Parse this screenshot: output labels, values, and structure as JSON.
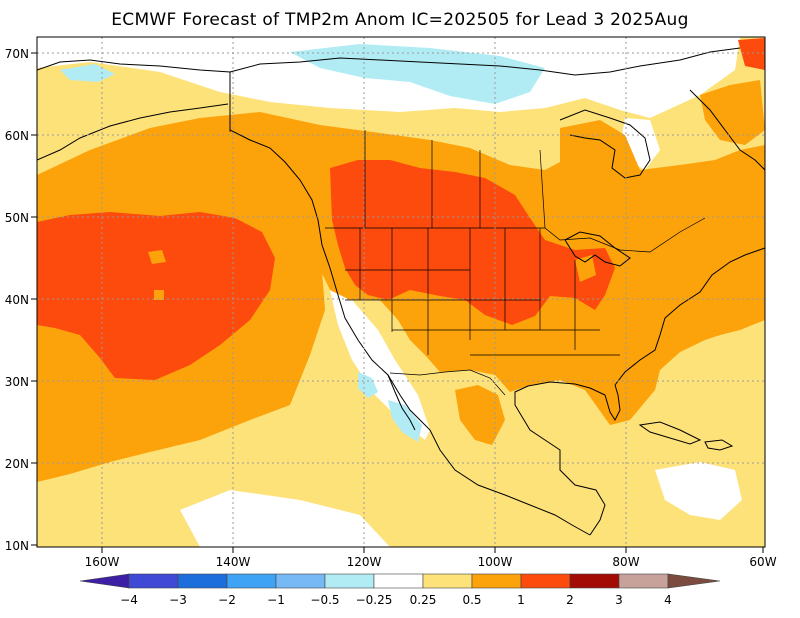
{
  "title": "ECMWF Forecast of TMP2m Anom IC=202505 for Lead 3 2025Aug",
  "latitude_labels": [
    "70N",
    "60N",
    "50N",
    "40N",
    "30N",
    "20N",
    "10N"
  ],
  "longitude_labels": [
    "160W",
    "140W",
    "120W",
    "100W",
    "80W",
    "60W"
  ],
  "colorbar": {
    "bins": [
      {
        "color": "#3c1fa5"
      },
      {
        "color": "#3f49d6"
      },
      {
        "color": "#1c6edc"
      },
      {
        "color": "#3ea2f5"
      },
      {
        "color": "#76b9f5"
      },
      {
        "color": "#b1ecf4"
      },
      {
        "color": "#ffffff"
      },
      {
        "color": "#fde27a"
      },
      {
        "color": "#fca20a"
      },
      {
        "color": "#fc4b0d"
      },
      {
        "color": "#a20c05"
      },
      {
        "color": "#c6a29a"
      },
      {
        "color": "#7c4b3f"
      }
    ],
    "tick_labels": [
      "−4",
      "−3",
      "−2",
      "−1",
      "−0.5",
      "−0.25",
      "0.25",
      "0.5",
      "1",
      "2",
      "3",
      "4"
    ]
  },
  "colors": {
    "anom_0_25_0_5": "#fde27a",
    "anom_0_5_1": "#fca20a",
    "anom_1_2": "#fc4b0d",
    "anom_2_3": "#a20c05",
    "anom_neg_0_25_neg_0_5": "#b1ecf4",
    "coastline": "#000000",
    "grid": "#9a9a9a"
  }
}
